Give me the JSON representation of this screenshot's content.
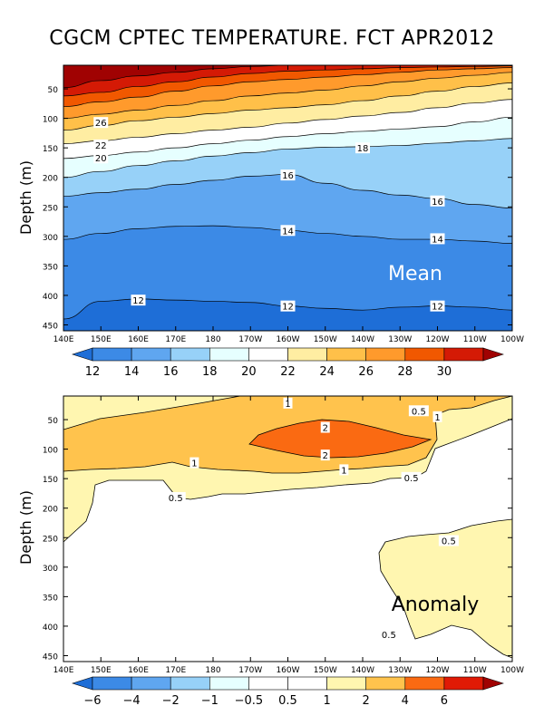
{
  "title": "CGCM CPTEC TEMPERATURE. FCT APR2012",
  "colors": {
    "mean_levels": [
      "#1e6ed7",
      "#3c8ae6",
      "#5fa6f0",
      "#97d1f8",
      "#e6ffff",
      "#ffffff",
      "#ffeda2",
      "#ffc049",
      "#ff9a2c",
      "#f15800",
      "#d41a05",
      "#a00202"
    ],
    "anom_levels": [
      "#1e6ed7",
      "#3c8ae6",
      "#5fa6f0",
      "#97d1f8",
      "#e6ffff",
      "#ffffff",
      "#fff6b0",
      "#ffc34d",
      "#fa6a12",
      "#e01a05",
      "#a00202"
    ]
  },
  "chart_data": [
    {
      "type": "contour",
      "panel": "mean",
      "label": "Mean",
      "ylabel": "Depth (m)",
      "x_ticks": [
        "140E",
        "150E",
        "160E",
        "170E",
        "180",
        "170W",
        "160W",
        "150W",
        "140W",
        "130W",
        "120W",
        "110W",
        "100W"
      ],
      "y_ticks": [
        "50",
        "100",
        "150",
        "200",
        "250",
        "300",
        "350",
        "400",
        "450"
      ],
      "ylim": [
        460,
        10
      ],
      "x_labels_at": [
        "140E",
        "150E",
        "160E",
        "170E",
        "180",
        "170W",
        "160W",
        "150W",
        "140W",
        "130W",
        "120W",
        "110W",
        "100W"
      ],
      "isotherms": [
        {
          "value": 30,
          "depth": [
            48,
            36,
            28,
            22,
            16,
            12,
            10,
            10,
            10,
            10,
            10,
            10,
            10
          ]
        },
        {
          "value": 29,
          "depth": [
            62,
            56,
            46,
            38,
            30,
            24,
            20,
            18,
            16,
            14,
            13,
            12,
            11
          ]
        },
        {
          "value": 28,
          "depth": [
            80,
            72,
            64,
            54,
            45,
            38,
            34,
            30,
            26,
            22,
            18,
            16,
            14
          ]
        },
        {
          "value": 26,
          "depth": [
            100,
            93,
            86,
            78,
            70,
            62,
            57,
            52,
            45,
            38,
            32,
            27,
            22
          ]
        },
        {
          "value": 24,
          "depth": [
            120,
            112,
            104,
            98,
            92,
            86,
            82,
            77,
            70,
            62,
            54,
            46,
            40
          ]
        },
        {
          "value": 22,
          "depth": [
            143,
            138,
            132,
            126,
            120,
            115,
            108,
            102,
            96,
            90,
            82,
            74,
            68
          ]
        },
        {
          "value": 20,
          "depth": [
            168,
            163,
            157,
            150,
            143,
            137,
            131,
            126,
            122,
            118,
            114,
            106,
            98
          ]
        },
        {
          "value": 18,
          "depth": [
            200,
            190,
            180,
            172,
            164,
            158,
            152,
            149,
            148,
            146,
            142,
            138,
            134
          ]
        },
        {
          "value": 16,
          "depth": [
            232,
            226,
            220,
            212,
            205,
            198,
            195,
            210,
            222,
            230,
            236,
            246,
            252
          ]
        },
        {
          "value": 14,
          "depth": [
            305,
            295,
            287,
            283,
            282,
            285,
            290,
            295,
            300,
            305,
            305,
            308,
            312
          ]
        },
        {
          "value": 12,
          "depth": [
            440,
            410,
            406,
            408,
            410,
            412,
            418,
            422,
            425,
            420,
            418,
            420,
            425
          ]
        }
      ],
      "contour_labels": [
        {
          "text": "26",
          "lon": "150E",
          "depth": 107
        },
        {
          "text": "22",
          "lon": "150E",
          "depth": 145
        },
        {
          "text": "20",
          "lon": "150E",
          "depth": 167
        },
        {
          "text": "18",
          "lon": "140W",
          "depth": 150
        },
        {
          "text": "16",
          "lon": "160W",
          "depth": 196
        },
        {
          "text": "16",
          "lon": "120W",
          "depth": 240
        },
        {
          "text": "14",
          "lon": "160W",
          "depth": 290
        },
        {
          "text": "14",
          "lon": "120W",
          "depth": 304
        },
        {
          "text": "12",
          "lon": "160E",
          "depth": 408
        },
        {
          "text": "12",
          "lon": "160W",
          "depth": 418
        },
        {
          "text": "12",
          "lon": "120W",
          "depth": 418
        }
      ],
      "colorbar": [
        "12",
        "14",
        "16",
        "18",
        "20",
        "22",
        "24",
        "26",
        "28",
        "30"
      ]
    },
    {
      "type": "contour",
      "panel": "anomaly",
      "label": "Anomaly",
      "ylabel": "Depth (m)",
      "x_ticks": [
        "140E",
        "150E",
        "160E",
        "170E",
        "180",
        "170W",
        "160W",
        "150W",
        "140W",
        "130W",
        "120W",
        "110W",
        "100W"
      ],
      "y_ticks": [
        "50",
        "100",
        "150",
        "200",
        "250",
        "300",
        "350",
        "400",
        "450"
      ],
      "ylim": [
        460,
        10
      ],
      "contour_labels": [
        {
          "text": "1",
          "lon": "160W",
          "depth": 22
        },
        {
          "text": "0.5",
          "lon": "125W",
          "depth": 35
        },
        {
          "text": "1",
          "lon": "120W",
          "depth": 45
        },
        {
          "text": "2",
          "lon": "150W",
          "depth": 63
        },
        {
          "text": "2",
          "lon": "150W",
          "depth": 110
        },
        {
          "text": "1",
          "lon": "175E",
          "depth": 123
        },
        {
          "text": "1",
          "lon": "145W",
          "depth": 135
        },
        {
          "text": "0.5",
          "lon": "127W",
          "depth": 148
        },
        {
          "text": "0.5",
          "lon": "170E",
          "depth": 182
        },
        {
          "text": "0.5",
          "lon": "117W",
          "depth": 255
        },
        {
          "text": "0.5",
          "lon": "133W",
          "depth": 414
        }
      ],
      "colorbar": [
        "−6",
        "−4",
        "−2",
        "−1",
        "−0.5",
        "0.5",
        "1",
        "2",
        "4",
        "6"
      ]
    }
  ]
}
